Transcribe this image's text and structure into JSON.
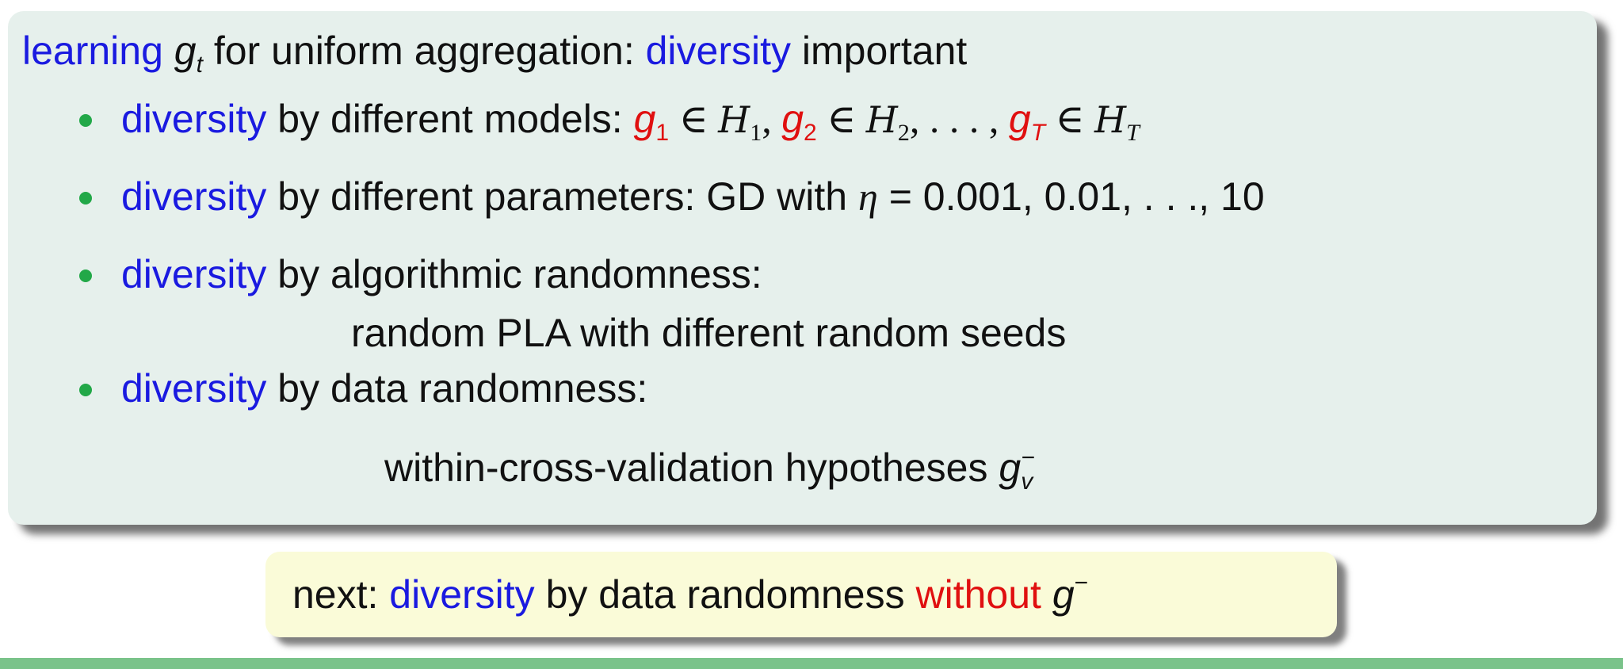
{
  "heading": {
    "t1": "learning ",
    "g": "g",
    "g_sub": "t",
    "t2": " for uniform aggregation: ",
    "diversity": "diversity",
    "t3": " important"
  },
  "bullets": [
    {
      "diversity": "diversity",
      "text": " by different models: ",
      "g1": "g",
      "g1_sub": "1",
      "in1": " ∈ ",
      "h1": "H",
      "h1_sub": "1",
      "c1": ", ",
      "g2": "g",
      "g2_sub": "2",
      "in2": " ∈ ",
      "h2": "H",
      "h2_sub": "2",
      "c2": ", . . . , ",
      "gT": "g",
      "gT_sub": "T",
      "in3": " ∈ ",
      "hT": "H",
      "hT_sub": "T"
    },
    {
      "diversity": "diversity",
      "text": " by different parameters: GD with ",
      "eta": "η",
      "rest": " = 0.001, 0.01, . . ., 10"
    },
    {
      "diversity": "diversity",
      "text": " by algorithmic randomness:",
      "line2": "random PLA with different random seeds"
    },
    {
      "diversity": "diversity",
      "text": " by data randomness:",
      "line2": "within-cross-validation hypotheses ",
      "g": "g",
      "g_sub": "v",
      "g_sup": "−"
    }
  ],
  "next_box": {
    "t1": "next: ",
    "diversity": "diversity",
    "t2": " by data randomness ",
    "without": "without",
    "g": "g",
    "g_sup": "−"
  },
  "colors": {
    "blue": "#1a1ae0",
    "red": "#e01010",
    "bullet_green": "#22a848",
    "main_box_bg": "#e6f0ec",
    "next_box_bg": "#fafbd8"
  }
}
